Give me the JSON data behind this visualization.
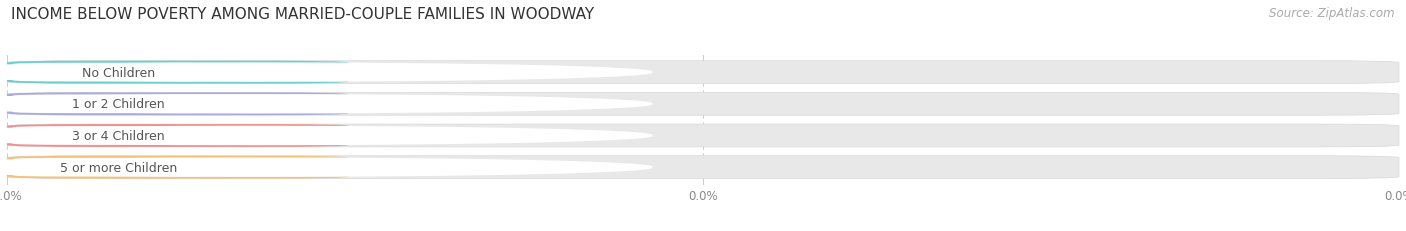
{
  "title": "INCOME BELOW POVERTY AMONG MARRIED-COUPLE FAMILIES IN WOODWAY",
  "source": "Source: ZipAtlas.com",
  "categories": [
    "No Children",
    "1 or 2 Children",
    "3 or 4 Children",
    "5 or more Children"
  ],
  "values": [
    0.0,
    0.0,
    0.0,
    0.0
  ],
  "bar_colors": [
    "#6ecfca",
    "#aaaadd",
    "#f09090",
    "#f5c07a"
  ],
  "bg_row_colors": [
    "#f0f0f0",
    "#f0f0f0",
    "#f0f0f0",
    "#f0f0f0"
  ],
  "title_fontsize": 11,
  "source_fontsize": 8.5,
  "label_fontsize": 9,
  "value_fontsize": 8.5,
  "tick_fontsize": 8.5,
  "figsize": [
    14.06,
    2.32
  ],
  "dpi": 100
}
